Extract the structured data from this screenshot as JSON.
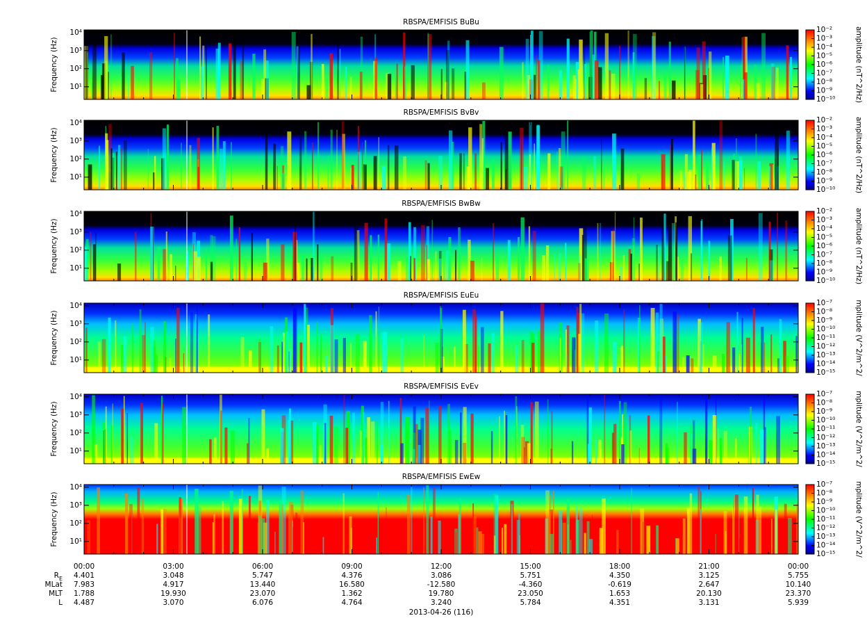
{
  "chart_data": [
    {
      "type": "spectrogram",
      "title": "RBSPA/EMFISIS  BuBu",
      "y_label": "Frequency (Hz)",
      "log_y": true,
      "ylim": [
        2,
        14000
      ],
      "yticks": [
        {
          "value": 10,
          "label": "10¹"
        },
        {
          "value": 100,
          "label": "10²"
        },
        {
          "value": 1000,
          "label": "10³"
        },
        {
          "value": 10000,
          "label": "10⁴"
        }
      ],
      "colorbar_label": "amplitude (nT^2/Hz)",
      "zlim": [
        1e-10,
        0.01
      ],
      "zticks": [
        {
          "value": 1e-10,
          "label": "10⁻¹⁰"
        },
        {
          "value": 1e-09,
          "label": "10⁻⁹"
        },
        {
          "value": 1e-08,
          "label": "10⁻⁸"
        },
        {
          "value": 1e-07,
          "label": "10⁻⁷"
        },
        {
          "value": 1e-06,
          "label": "10⁻⁶"
        },
        {
          "value": 1e-05,
          "label": "10⁻⁵"
        },
        {
          "value": 0.0001,
          "label": "10⁻⁴"
        },
        {
          "value": 0.001,
          "label": "10⁻³"
        },
        {
          "value": 0.01,
          "label": "10⁻²"
        }
      ]
    },
    {
      "type": "spectrogram",
      "title": "RBSPA/EMFISIS  BvBv",
      "y_label": "Frequency (Hz)",
      "log_y": true,
      "ylim": [
        2,
        14000
      ],
      "yticks": [
        {
          "value": 10,
          "label": "10¹"
        },
        {
          "value": 100,
          "label": "10²"
        },
        {
          "value": 1000,
          "label": "10³"
        },
        {
          "value": 10000,
          "label": "10⁴"
        }
      ],
      "colorbar_label": "amplitude (nT^2/Hz)",
      "zlim": [
        1e-10,
        0.01
      ],
      "zticks": [
        {
          "value": 1e-10,
          "label": "10⁻¹⁰"
        },
        {
          "value": 1e-09,
          "label": "10⁻⁹"
        },
        {
          "value": 1e-08,
          "label": "10⁻⁸"
        },
        {
          "value": 1e-07,
          "label": "10⁻⁷"
        },
        {
          "value": 1e-06,
          "label": "10⁻⁶"
        },
        {
          "value": 1e-05,
          "label": "10⁻⁵"
        },
        {
          "value": 0.0001,
          "label": "10⁻⁴"
        },
        {
          "value": 0.001,
          "label": "10⁻³"
        },
        {
          "value": 0.01,
          "label": "10⁻²"
        }
      ]
    },
    {
      "type": "spectrogram",
      "title": "RBSPA/EMFISIS  BwBw",
      "y_label": "Frequency (Hz)",
      "log_y": true,
      "ylim": [
        2,
        14000
      ],
      "yticks": [
        {
          "value": 10,
          "label": "10¹"
        },
        {
          "value": 100,
          "label": "10²"
        },
        {
          "value": 1000,
          "label": "10³"
        },
        {
          "value": 10000,
          "label": "10⁴"
        }
      ],
      "colorbar_label": "amplitude (nT^2/Hz)",
      "zlim": [
        1e-10,
        0.01
      ],
      "zticks": [
        {
          "value": 1e-10,
          "label": "10⁻¹⁰"
        },
        {
          "value": 1e-09,
          "label": "10⁻⁹"
        },
        {
          "value": 1e-08,
          "label": "10⁻⁸"
        },
        {
          "value": 1e-07,
          "label": "10⁻⁷"
        },
        {
          "value": 1e-06,
          "label": "10⁻⁶"
        },
        {
          "value": 1e-05,
          "label": "10⁻⁵"
        },
        {
          "value": 0.0001,
          "label": "10⁻⁴"
        },
        {
          "value": 0.001,
          "label": "10⁻³"
        },
        {
          "value": 0.01,
          "label": "10⁻²"
        }
      ]
    },
    {
      "type": "spectrogram",
      "title": "RBSPA/EMFISIS  EuEu",
      "y_label": "Frequency (Hz)",
      "log_y": true,
      "ylim": [
        2,
        14000
      ],
      "yticks": [
        {
          "value": 10,
          "label": "10¹"
        },
        {
          "value": 100,
          "label": "10²"
        },
        {
          "value": 1000,
          "label": "10³"
        },
        {
          "value": 10000,
          "label": "10⁴"
        }
      ],
      "colorbar_label": "mplitude (V^2/m^2/",
      "zlim": [
        1e-15,
        1e-07
      ],
      "zticks": [
        {
          "value": 1e-15,
          "label": "10⁻¹⁵"
        },
        {
          "value": 1e-14,
          "label": "10⁻¹⁴"
        },
        {
          "value": 1e-13,
          "label": "10⁻¹³"
        },
        {
          "value": 1e-12,
          "label": "10⁻¹²"
        },
        {
          "value": 1e-11,
          "label": "10⁻¹¹"
        },
        {
          "value": 1e-10,
          "label": "10⁻¹⁰"
        },
        {
          "value": 1e-09,
          "label": "10⁻⁹"
        },
        {
          "value": 1e-08,
          "label": "10⁻⁸"
        },
        {
          "value": 1e-07,
          "label": "10⁻⁷"
        }
      ]
    },
    {
      "type": "spectrogram",
      "title": "RBSPA/EMFISIS  EvEv",
      "y_label": "Frequency (Hz)",
      "log_y": true,
      "ylim": [
        2,
        14000
      ],
      "yticks": [
        {
          "value": 10,
          "label": "10¹"
        },
        {
          "value": 100,
          "label": "10²"
        },
        {
          "value": 1000,
          "label": "10³"
        },
        {
          "value": 10000,
          "label": "10⁴"
        }
      ],
      "colorbar_label": "mplitude (V^2/m^2/",
      "zlim": [
        1e-15,
        1e-07
      ],
      "zticks": [
        {
          "value": 1e-15,
          "label": "10⁻¹⁵"
        },
        {
          "value": 1e-14,
          "label": "10⁻¹⁴"
        },
        {
          "value": 1e-13,
          "label": "10⁻¹³"
        },
        {
          "value": 1e-12,
          "label": "10⁻¹²"
        },
        {
          "value": 1e-11,
          "label": "10⁻¹¹"
        },
        {
          "value": 1e-10,
          "label": "10⁻¹⁰"
        },
        {
          "value": 1e-09,
          "label": "10⁻⁹"
        },
        {
          "value": 1e-08,
          "label": "10⁻⁸"
        },
        {
          "value": 1e-07,
          "label": "10⁻⁷"
        }
      ]
    },
    {
      "type": "spectrogram",
      "title": "RBSPA/EMFISIS  EwEw",
      "y_label": "Frequency (Hz)",
      "log_y": true,
      "ylim": [
        2,
        14000
      ],
      "yticks": [
        {
          "value": 10,
          "label": "10¹"
        },
        {
          "value": 100,
          "label": "10²"
        },
        {
          "value": 1000,
          "label": "10³"
        },
        {
          "value": 10000,
          "label": "10⁴"
        }
      ],
      "colorbar_label": "mplitude (V^2/m^2/",
      "zlim": [
        1e-15,
        1e-07
      ],
      "zticks": [
        {
          "value": 1e-15,
          "label": "10⁻¹⁵"
        },
        {
          "value": 1e-14,
          "label": "10⁻¹⁴"
        },
        {
          "value": 1e-13,
          "label": "10⁻¹³"
        },
        {
          "value": 1e-12,
          "label": "10⁻¹²"
        },
        {
          "value": 1e-11,
          "label": "10⁻¹¹"
        },
        {
          "value": 1e-10,
          "label": "10⁻¹⁰"
        },
        {
          "value": 1e-09,
          "label": "10⁻⁹"
        },
        {
          "value": 1e-08,
          "label": "10⁻⁸"
        },
        {
          "value": 1e-07,
          "label": "10⁻⁷"
        }
      ],
      "xlim": [
        0,
        24
      ],
      "xticks": [
        {
          "value": 0,
          "label": "00:00"
        },
        {
          "value": 3,
          "label": "03:00"
        },
        {
          "value": 6,
          "label": "06:00"
        },
        {
          "value": 9,
          "label": "09:00"
        },
        {
          "value": 12,
          "label": "12:00"
        },
        {
          "value": 15,
          "label": "15:00"
        },
        {
          "value": 18,
          "label": "18:00"
        },
        {
          "value": 21,
          "label": "21:00"
        },
        {
          "value": 24,
          "label": "00:00"
        }
      ],
      "x_label": "2013-04-26 (116)"
    }
  ],
  "ephemeris": {
    "rows": [
      {
        "name": "R",
        "subscript": "E",
        "values": [
          "4.401",
          "3.048",
          "5.747",
          "4.376",
          "3.086",
          "5.751",
          "4.350",
          "3.125",
          "5.755"
        ]
      },
      {
        "name": "MLat",
        "values": [
          "7.983",
          "4.917",
          "13.440",
          "16.580",
          "-12.580",
          "-4.360",
          "-0.619",
          "2.647",
          "10.140"
        ]
      },
      {
        "name": "MLT",
        "values": [
          "1.788",
          "19.930",
          "23.070",
          "1.362",
          "19.780",
          "23.050",
          "1.653",
          "20.130",
          "23.370"
        ]
      },
      {
        "name": "L",
        "values": [
          "4.487",
          "3.070",
          "6.076",
          "4.764",
          "3.240",
          "5.784",
          "4.351",
          "3.131",
          "5.939"
        ]
      }
    ]
  }
}
